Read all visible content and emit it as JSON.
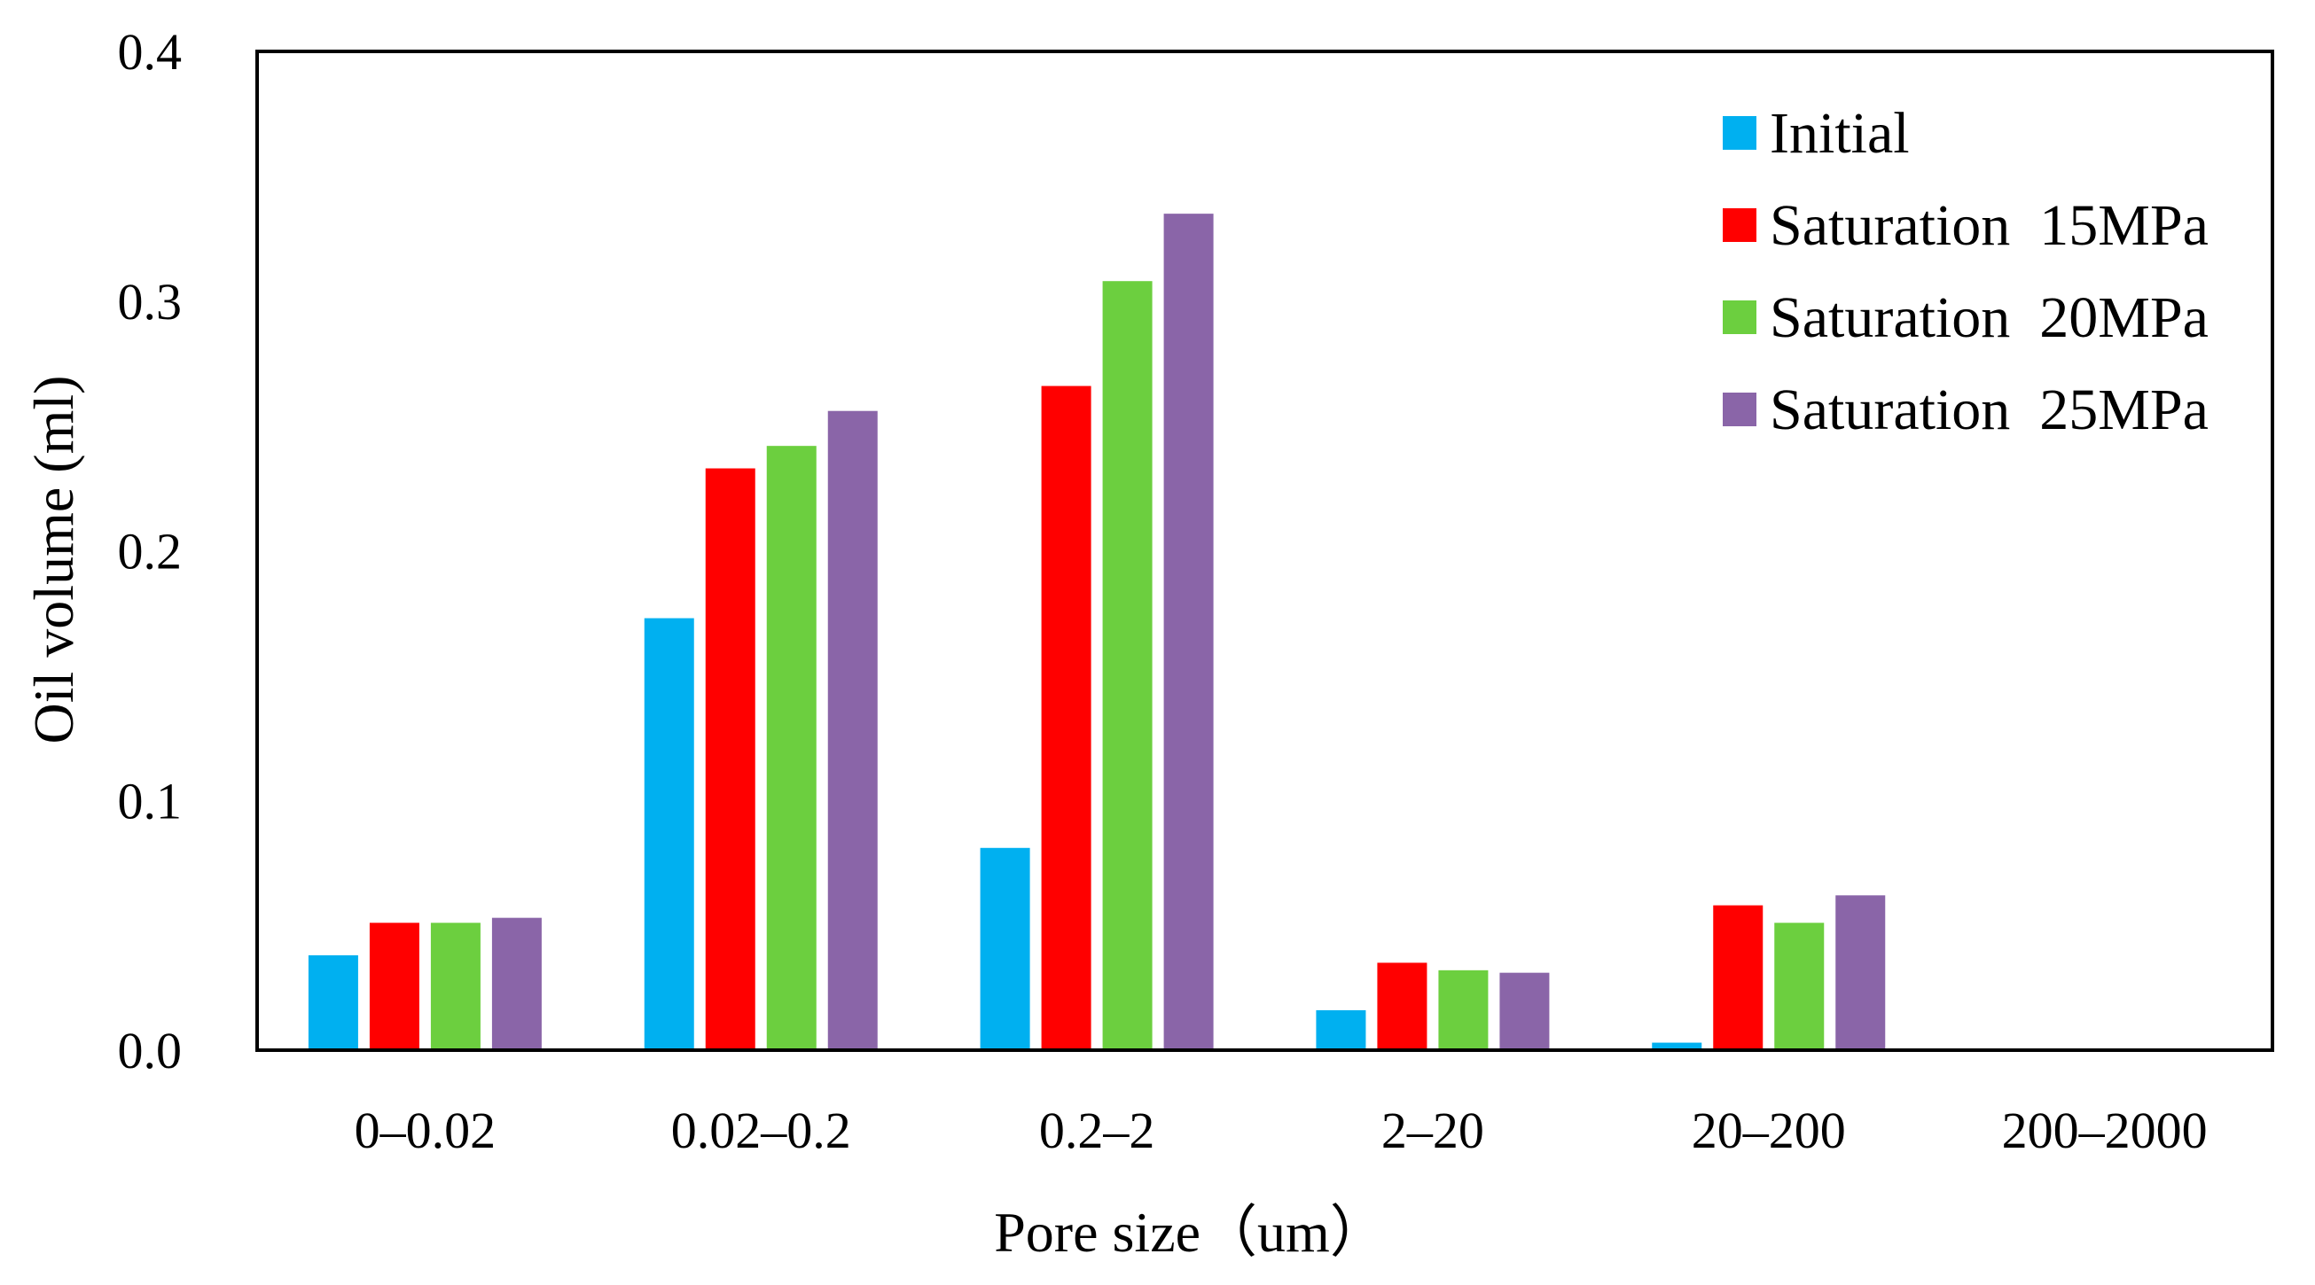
{
  "chart_data": {
    "type": "bar",
    "title": "",
    "xlabel": "Pore size（um）",
    "ylabel": "Oil volume (ml)",
    "ylim": [
      0,
      0.4
    ],
    "yticks": [
      "0.0",
      "0.1",
      "0.2",
      "0.3",
      "0.4"
    ],
    "ytick_values": [
      0,
      0.1,
      0.2,
      0.3,
      0.4
    ],
    "categories": [
      "0–0.02",
      "0.02–0.2",
      "0.2–2",
      "2–20",
      "20–200",
      "200–2000"
    ],
    "series": [
      {
        "name": "Initial",
        "color": "#00b0f0",
        "values": [
          0.038,
          0.173,
          0.081,
          0.016,
          0.003,
          0.0
        ]
      },
      {
        "name": "Saturation  15MPa",
        "color": "#ff0000",
        "values": [
          0.051,
          0.233,
          0.266,
          0.035,
          0.058,
          0.0
        ]
      },
      {
        "name": "Saturation  20MPa",
        "color": "#6ccf3f",
        "values": [
          0.051,
          0.242,
          0.308,
          0.032,
          0.051,
          0.0
        ]
      },
      {
        "name": "Saturation  25MPa",
        "color": "#8a65a8",
        "values": [
          0.053,
          0.256,
          0.335,
          0.031,
          0.062,
          0.0
        ]
      }
    ],
    "legend_position": "top-right",
    "grid": false
  }
}
